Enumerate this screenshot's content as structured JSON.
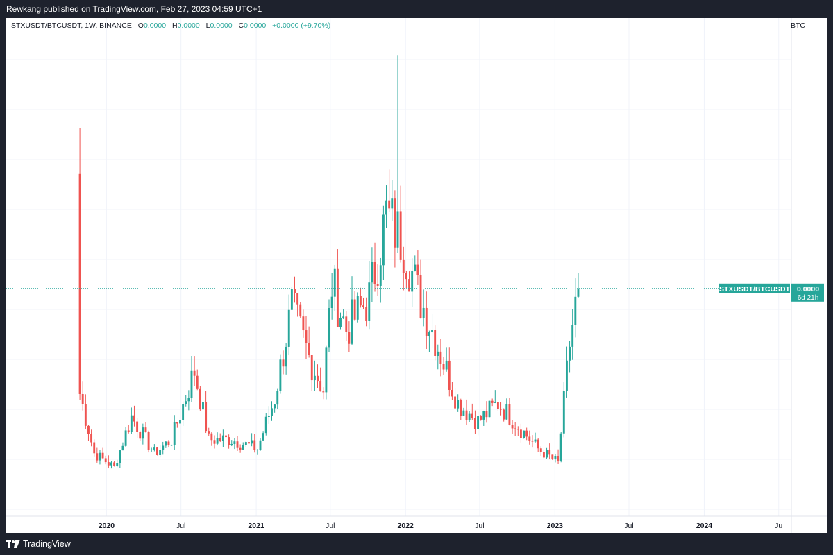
{
  "header": {
    "published_text": "Rewkang published on TradingView.com, Feb 27, 2023 04:59 UTC+1"
  },
  "legend": {
    "symbol": "STXUSDT/BTCUSDT, 1W, BINANCE",
    "o_label": "O",
    "o_value": "0.0000",
    "h_label": "H",
    "h_value": "0.0000",
    "l_label": "L",
    "l_value": "0.0000",
    "c_label": "C",
    "c_value": "0.0000",
    "change": "+0.0000 (+9.70%)"
  },
  "currency_label": "BTC",
  "price_tag": {
    "symbol": "STXUSDT/BTCUSDT",
    "value": "0.0000",
    "countdown": "6d 21h"
  },
  "footer": {
    "brand": "TradingView"
  },
  "colors": {
    "up": "#26a69a",
    "down": "#ef5350",
    "frame": "#1e222d",
    "grid": "#f0f3fa"
  },
  "chart_data": {
    "type": "candlestick",
    "symbol": "STXUSDT/BTCUSDT",
    "interval": "1W",
    "exchange": "BINANCE",
    "x_ticks": [
      "2020",
      "Jul",
      "2021",
      "Jul",
      "2022",
      "Jul",
      "2023",
      "Jul",
      "2024",
      "Ju"
    ],
    "x_range": [
      "2019-05-01",
      "2024-08-01"
    ],
    "y_unit": "BTC",
    "y_scale": "relative (approximate, normalized)",
    "y_range": [
      0,
      100
    ],
    "last_price_level": 47,
    "grid": true,
    "weekly_closes_approx": [
      {
        "date": "2019-10-28",
        "close": 24
      },
      {
        "date": "2019-12-02",
        "close": 11
      },
      {
        "date": "2020-01-20",
        "close": 8
      },
      {
        "date": "2020-03-02",
        "close": 19
      },
      {
        "date": "2020-04-27",
        "close": 11
      },
      {
        "date": "2020-06-08",
        "close": 14
      },
      {
        "date": "2020-08-03",
        "close": 29
      },
      {
        "date": "2020-09-07",
        "close": 14
      },
      {
        "date": "2020-11-02",
        "close": 14
      },
      {
        "date": "2021-01-04",
        "close": 12
      },
      {
        "date": "2021-02-15",
        "close": 23
      },
      {
        "date": "2021-03-29",
        "close": 43
      },
      {
        "date": "2021-05-10",
        "close": 32
      },
      {
        "date": "2021-06-14",
        "close": 25
      },
      {
        "date": "2021-07-05",
        "close": 48
      },
      {
        "date": "2021-08-09",
        "close": 38
      },
      {
        "date": "2021-10-04",
        "close": 45
      },
      {
        "date": "2021-11-15",
        "close": 63
      },
      {
        "date": "2021-12-27",
        "close": 57
      },
      {
        "date": "2022-01-31",
        "close": 46
      },
      {
        "date": "2022-03-07",
        "close": 38
      },
      {
        "date": "2022-05-09",
        "close": 22
      },
      {
        "date": "2022-06-27",
        "close": 18
      },
      {
        "date": "2022-08-15",
        "close": 22
      },
      {
        "date": "2022-10-03",
        "close": 17
      },
      {
        "date": "2022-11-21",
        "close": 12
      },
      {
        "date": "2023-01-09",
        "close": 9
      },
      {
        "date": "2023-02-06",
        "close": 35
      },
      {
        "date": "2023-02-27",
        "close": 47
      }
    ]
  }
}
